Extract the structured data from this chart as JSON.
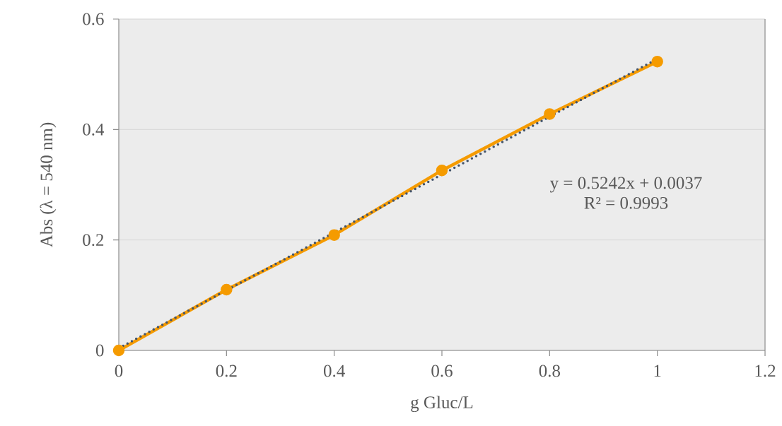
{
  "chart_data": {
    "type": "line",
    "xlabel": "g Gluc/L",
    "ylabel": "Abs (λ = 540 nm)",
    "xlim": [
      0,
      1.2
    ],
    "ylim": [
      0,
      0.6
    ],
    "xticks": [
      0,
      0.2,
      0.4,
      0.6,
      0.8,
      1,
      1.2
    ],
    "yticks": [
      0,
      0.2,
      0.4,
      0.6
    ],
    "grid": "y",
    "series": [
      {
        "color": "#f59b00",
        "marker": "circle",
        "line_style": "solid",
        "x": [
          0,
          0.2,
          0.4,
          0.6,
          0.8,
          1.0
        ],
        "values": [
          0,
          0.11,
          0.209,
          0.326,
          0.428,
          0.523
        ]
      },
      {
        "color": "#44546a",
        "marker": "none",
        "line_style": "dotted",
        "x": [
          0,
          1.0
        ],
        "values": [
          0.004,
          0.528
        ]
      }
    ],
    "annotations": [
      "y = 0.5242x  + 0.0037",
      "R² = 0.9993"
    ]
  }
}
